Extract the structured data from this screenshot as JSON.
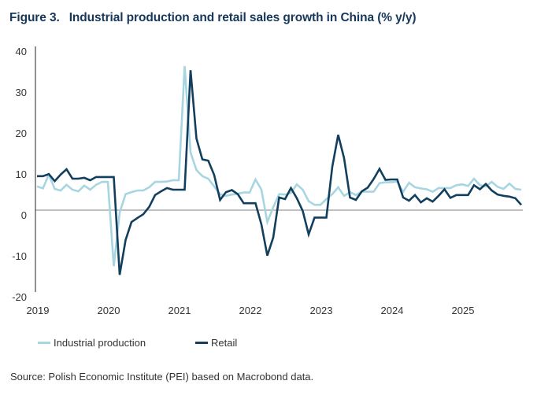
{
  "figure": {
    "number": "Figure 3.",
    "title": "Industrial production and retail sales growth in China (% y/y)"
  },
  "source": "Source: Polish Economic Institute (PEI) based on Macrobond data.",
  "colors": {
    "industrial_production": "#a7d6e0",
    "retail": "#133f5e",
    "axis": "#222222",
    "zero_line": "#999999"
  },
  "chart_data": {
    "type": "line",
    "title": "Industrial production and retail sales growth in China (% y/y)",
    "xlabel": "",
    "ylabel": "% y/y",
    "x_start": "2019-01",
    "frequency": "monthly",
    "x_tick_labels": [
      "2019",
      "2020",
      "2021",
      "2022",
      "2023",
      "2024",
      "2025"
    ],
    "y_tick_labels": [
      "40",
      "30",
      "20",
      "10",
      "0",
      "-10",
      "-20"
    ],
    "y_ticks": [
      40,
      30,
      20,
      10,
      0,
      -10,
      -20
    ],
    "ylim": [
      -20,
      40
    ],
    "grid": false,
    "zero_line": true,
    "legend_position": "bottom",
    "series": [
      {
        "name": "Industrial production",
        "color": "#a7d6e0",
        "values": [
          5.8,
          5.3,
          8.7,
          5.2,
          4.8,
          6.2,
          5.0,
          4.6,
          6.0,
          5.0,
          6.2,
          6.9,
          6.9,
          -13.7,
          -0.6,
          3.9,
          4.4,
          4.8,
          4.8,
          5.6,
          6.9,
          6.9,
          7.0,
          7.3,
          7.3,
          35.2,
          14.1,
          9.8,
          8.3,
          7.7,
          5.8,
          3.9,
          3.5,
          3.8,
          4.0,
          4.3,
          4.3,
          7.5,
          5.0,
          -2.9,
          0.7,
          3.9,
          3.8,
          4.2,
          6.3,
          5.0,
          2.2,
          1.3,
          1.3,
          2.7,
          3.9,
          5.6,
          3.5,
          4.4,
          3.7,
          4.5,
          4.5,
          4.5,
          6.6,
          6.8,
          6.8,
          7.0,
          4.5,
          6.7,
          5.6,
          5.3,
          5.1,
          4.5,
          5.4,
          5.4,
          5.4,
          6.1,
          6.3,
          5.9,
          7.7,
          6.1,
          5.8,
          6.9,
          5.7,
          5.2,
          6.5,
          5.2,
          5.0
        ]
      },
      {
        "name": "Retail",
        "color": "#133f5e",
        "values": [
          8.3,
          8.3,
          8.8,
          7.1,
          8.7,
          10.0,
          7.7,
          7.7,
          7.9,
          7.3,
          8.1,
          8.1,
          8.1,
          8.1,
          -15.8,
          -7.3,
          -2.9,
          -1.9,
          -1.0,
          0.8,
          3.7,
          4.6,
          5.4,
          5.0,
          5.0,
          5.0,
          34.2,
          17.5,
          12.4,
          12.1,
          8.6,
          2.5,
          4.4,
          4.9,
          3.9,
          1.7,
          1.7,
          1.7,
          -3.5,
          -11.1,
          -6.7,
          3.1,
          2.7,
          5.4,
          2.9,
          -0.2,
          -5.9,
          -1.8,
          -1.8,
          -1.8,
          10.6,
          18.4,
          12.7,
          3.1,
          2.5,
          4.6,
          5.5,
          7.6,
          10.1,
          7.4,
          7.5,
          7.5,
          3.1,
          2.3,
          3.7,
          1.9,
          2.9,
          2.1,
          3.5,
          5.1,
          3.0,
          3.7,
          3.7,
          3.7,
          6.1,
          5.1,
          6.4,
          4.8,
          3.8,
          3.5,
          3.3,
          2.9,
          1.3
        ]
      }
    ]
  }
}
